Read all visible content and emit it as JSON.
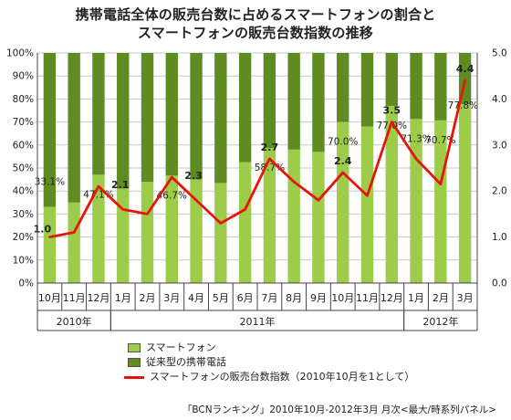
{
  "title_line1": "携帯電話全体の販売台数に占めるスマートフォンの割合と",
  "title_line2": "スマートフォンの販売台数指数の推移",
  "source": "「BCNランキング」2010年10月-2012年3月 月次<最大/時系列パネル>",
  "colors": {
    "smartphone": "#9ccc4a",
    "feature_phone": "#5e8c22",
    "index_line": "#e8140c",
    "grid": "#c8c8c8",
    "axis": "#444444"
  },
  "chart_data": {
    "type": "bar",
    "categories": [
      "10月",
      "11月",
      "12月",
      "1月",
      "2月",
      "3月",
      "4月",
      "5月",
      "6月",
      "7月",
      "8月",
      "9月",
      "10月",
      "11月",
      "12月",
      "1月",
      "2月",
      "3月"
    ],
    "year_groups": [
      {
        "label": "2010年",
        "start": 0,
        "end": 2
      },
      {
        "label": "2011年",
        "start": 3,
        "end": 14
      },
      {
        "label": "2012年",
        "start": 15,
        "end": 17
      }
    ],
    "series": [
      {
        "name": "スマートフォン",
        "kind": "stacked-bar",
        "values": [
          33.1,
          35.0,
          47.1,
          41.0,
          44.0,
          46.7,
          45.0,
          43.5,
          52.5,
          58.7,
          58.0,
          57.0,
          70.0,
          68.0,
          77.0,
          71.3,
          70.7,
          77.8
        ]
      },
      {
        "name": "従来型の携帯電話",
        "kind": "stacked-bar",
        "values": [
          66.9,
          65.0,
          52.9,
          59.0,
          56.0,
          53.3,
          55.0,
          56.5,
          47.5,
          41.3,
          42.0,
          43.0,
          30.0,
          32.0,
          23.0,
          28.7,
          29.3,
          22.2
        ]
      },
      {
        "name": "スマートフォンの販売台数指数（2010年10月を1として）",
        "kind": "line",
        "axis": "right",
        "values": [
          1.0,
          1.1,
          2.1,
          1.6,
          1.5,
          2.3,
          1.8,
          1.3,
          1.6,
          2.7,
          2.2,
          1.8,
          2.4,
          1.9,
          3.5,
          2.7,
          2.15,
          4.4
        ]
      }
    ],
    "bar_labels": [
      {
        "i": 0,
        "text": "33.1%"
      },
      {
        "i": 2,
        "text": "47.1%"
      },
      {
        "i": 5,
        "text": "46.7%"
      },
      {
        "i": 9,
        "text": "58.7%"
      },
      {
        "i": 12,
        "text": "70.0%"
      },
      {
        "i": 14,
        "text": "77.0%"
      },
      {
        "i": 15,
        "text": "71.3%"
      },
      {
        "i": 16,
        "text": "70.7%"
      },
      {
        "i": 17,
        "text": "77.8%"
      }
    ],
    "line_labels": [
      {
        "i": 0,
        "text": "1.0"
      },
      {
        "i": 2,
        "text": "2.1"
      },
      {
        "i": 5,
        "text": "2.3"
      },
      {
        "i": 9,
        "text": "2.7"
      },
      {
        "i": 12,
        "text": "2.4"
      },
      {
        "i": 14,
        "text": "3.5"
      },
      {
        "i": 17,
        "text": "4.4"
      }
    ],
    "y_left": {
      "ticks": [
        "0%",
        "10%",
        "20%",
        "30%",
        "40%",
        "50%",
        "60%",
        "70%",
        "80%",
        "90%",
        "100%"
      ],
      "min": 0,
      "max": 100
    },
    "y_right": {
      "ticks": [
        "0.0",
        "1.0",
        "2.0",
        "3.0",
        "4.0",
        "5.0"
      ],
      "min": 0,
      "max": 5
    },
    "grid": true,
    "legend": "bottom-left"
  }
}
